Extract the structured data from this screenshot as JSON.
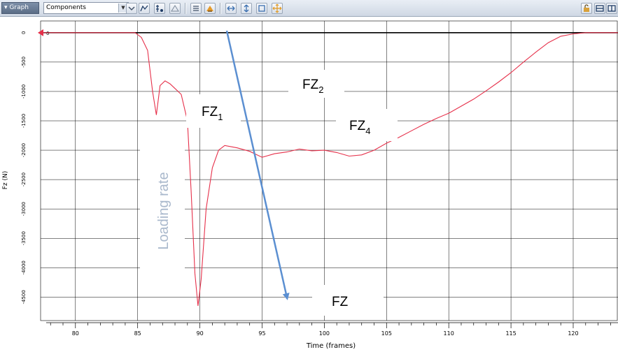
{
  "toolbar": {
    "graph_tab": "Graph",
    "view_select": "Components"
  },
  "chart_data": {
    "type": "line",
    "xlabel": "Time (frames)",
    "ylabel": "Fz (N)",
    "xlim": [
      77.2,
      123.6
    ],
    "ylim": [
      -4900,
      200
    ],
    "x_ticks": [
      80,
      85,
      90,
      95,
      100,
      105,
      110,
      115,
      120
    ],
    "y_ticks": [
      0,
      -500,
      -1000,
      -1500,
      -2000,
      -2500,
      -3000,
      -3500,
      -4000,
      -4500
    ],
    "y_tick_labels": [
      "0",
      "-500",
      "-1000",
      "-1500",
      "-2000",
      "-2500",
      "-3000",
      "-3500",
      "-4000",
      "-4500"
    ],
    "grid": true,
    "series": [
      {
        "color": "#e6304a",
        "x": [
          77.2,
          84.8,
          85.3,
          85.8,
          86.2,
          86.5,
          86.8,
          87.2,
          87.6,
          88.0,
          88.5,
          89.0,
          89.3,
          89.6,
          89.85,
          90.1,
          90.5,
          91.0,
          91.5,
          92.0,
          93.0,
          94.0,
          95.0,
          96.0,
          97.0,
          98.0,
          99.0,
          100.0,
          101.0,
          102.0,
          103.0,
          104.0,
          105.0,
          106.0,
          107.0,
          108.0,
          109.0,
          110.0,
          111.0,
          112.0,
          113.0,
          114.0,
          115.0,
          116.0,
          117.0,
          118.0,
          119.0,
          120.0,
          121.0,
          123.6
        ],
        "y": [
          0,
          0,
          -80,
          -300,
          -1000,
          -1400,
          -900,
          -820,
          -870,
          -950,
          -1050,
          -1500,
          -2700,
          -4100,
          -4650,
          -4200,
          -3000,
          -2300,
          -2000,
          -1920,
          -1960,
          -2020,
          -2120,
          -2060,
          -2030,
          -1980,
          -2010,
          -2000,
          -2040,
          -2100,
          -2080,
          -2000,
          -1880,
          -1780,
          -1670,
          -1560,
          -1460,
          -1370,
          -1250,
          -1130,
          -990,
          -840,
          -680,
          -500,
          -330,
          -170,
          -60,
          -20,
          0,
          0
        ]
      }
    ],
    "annotations": {
      "fz1": "FZ",
      "fz1_sub": "1",
      "fz2": "FZ",
      "fz2_sub": "2",
      "fz4": "FZ",
      "fz4_sub": "4",
      "fz": "FZ",
      "loading_rate": "Loading rate",
      "zero_marker": "0"
    },
    "colors": {
      "curve": "#e6304a",
      "zero_line": "#000000",
      "arrow": "#5b8fd1",
      "grid": "#000000",
      "loading_rate_text": "#a9b8cc"
    }
  }
}
